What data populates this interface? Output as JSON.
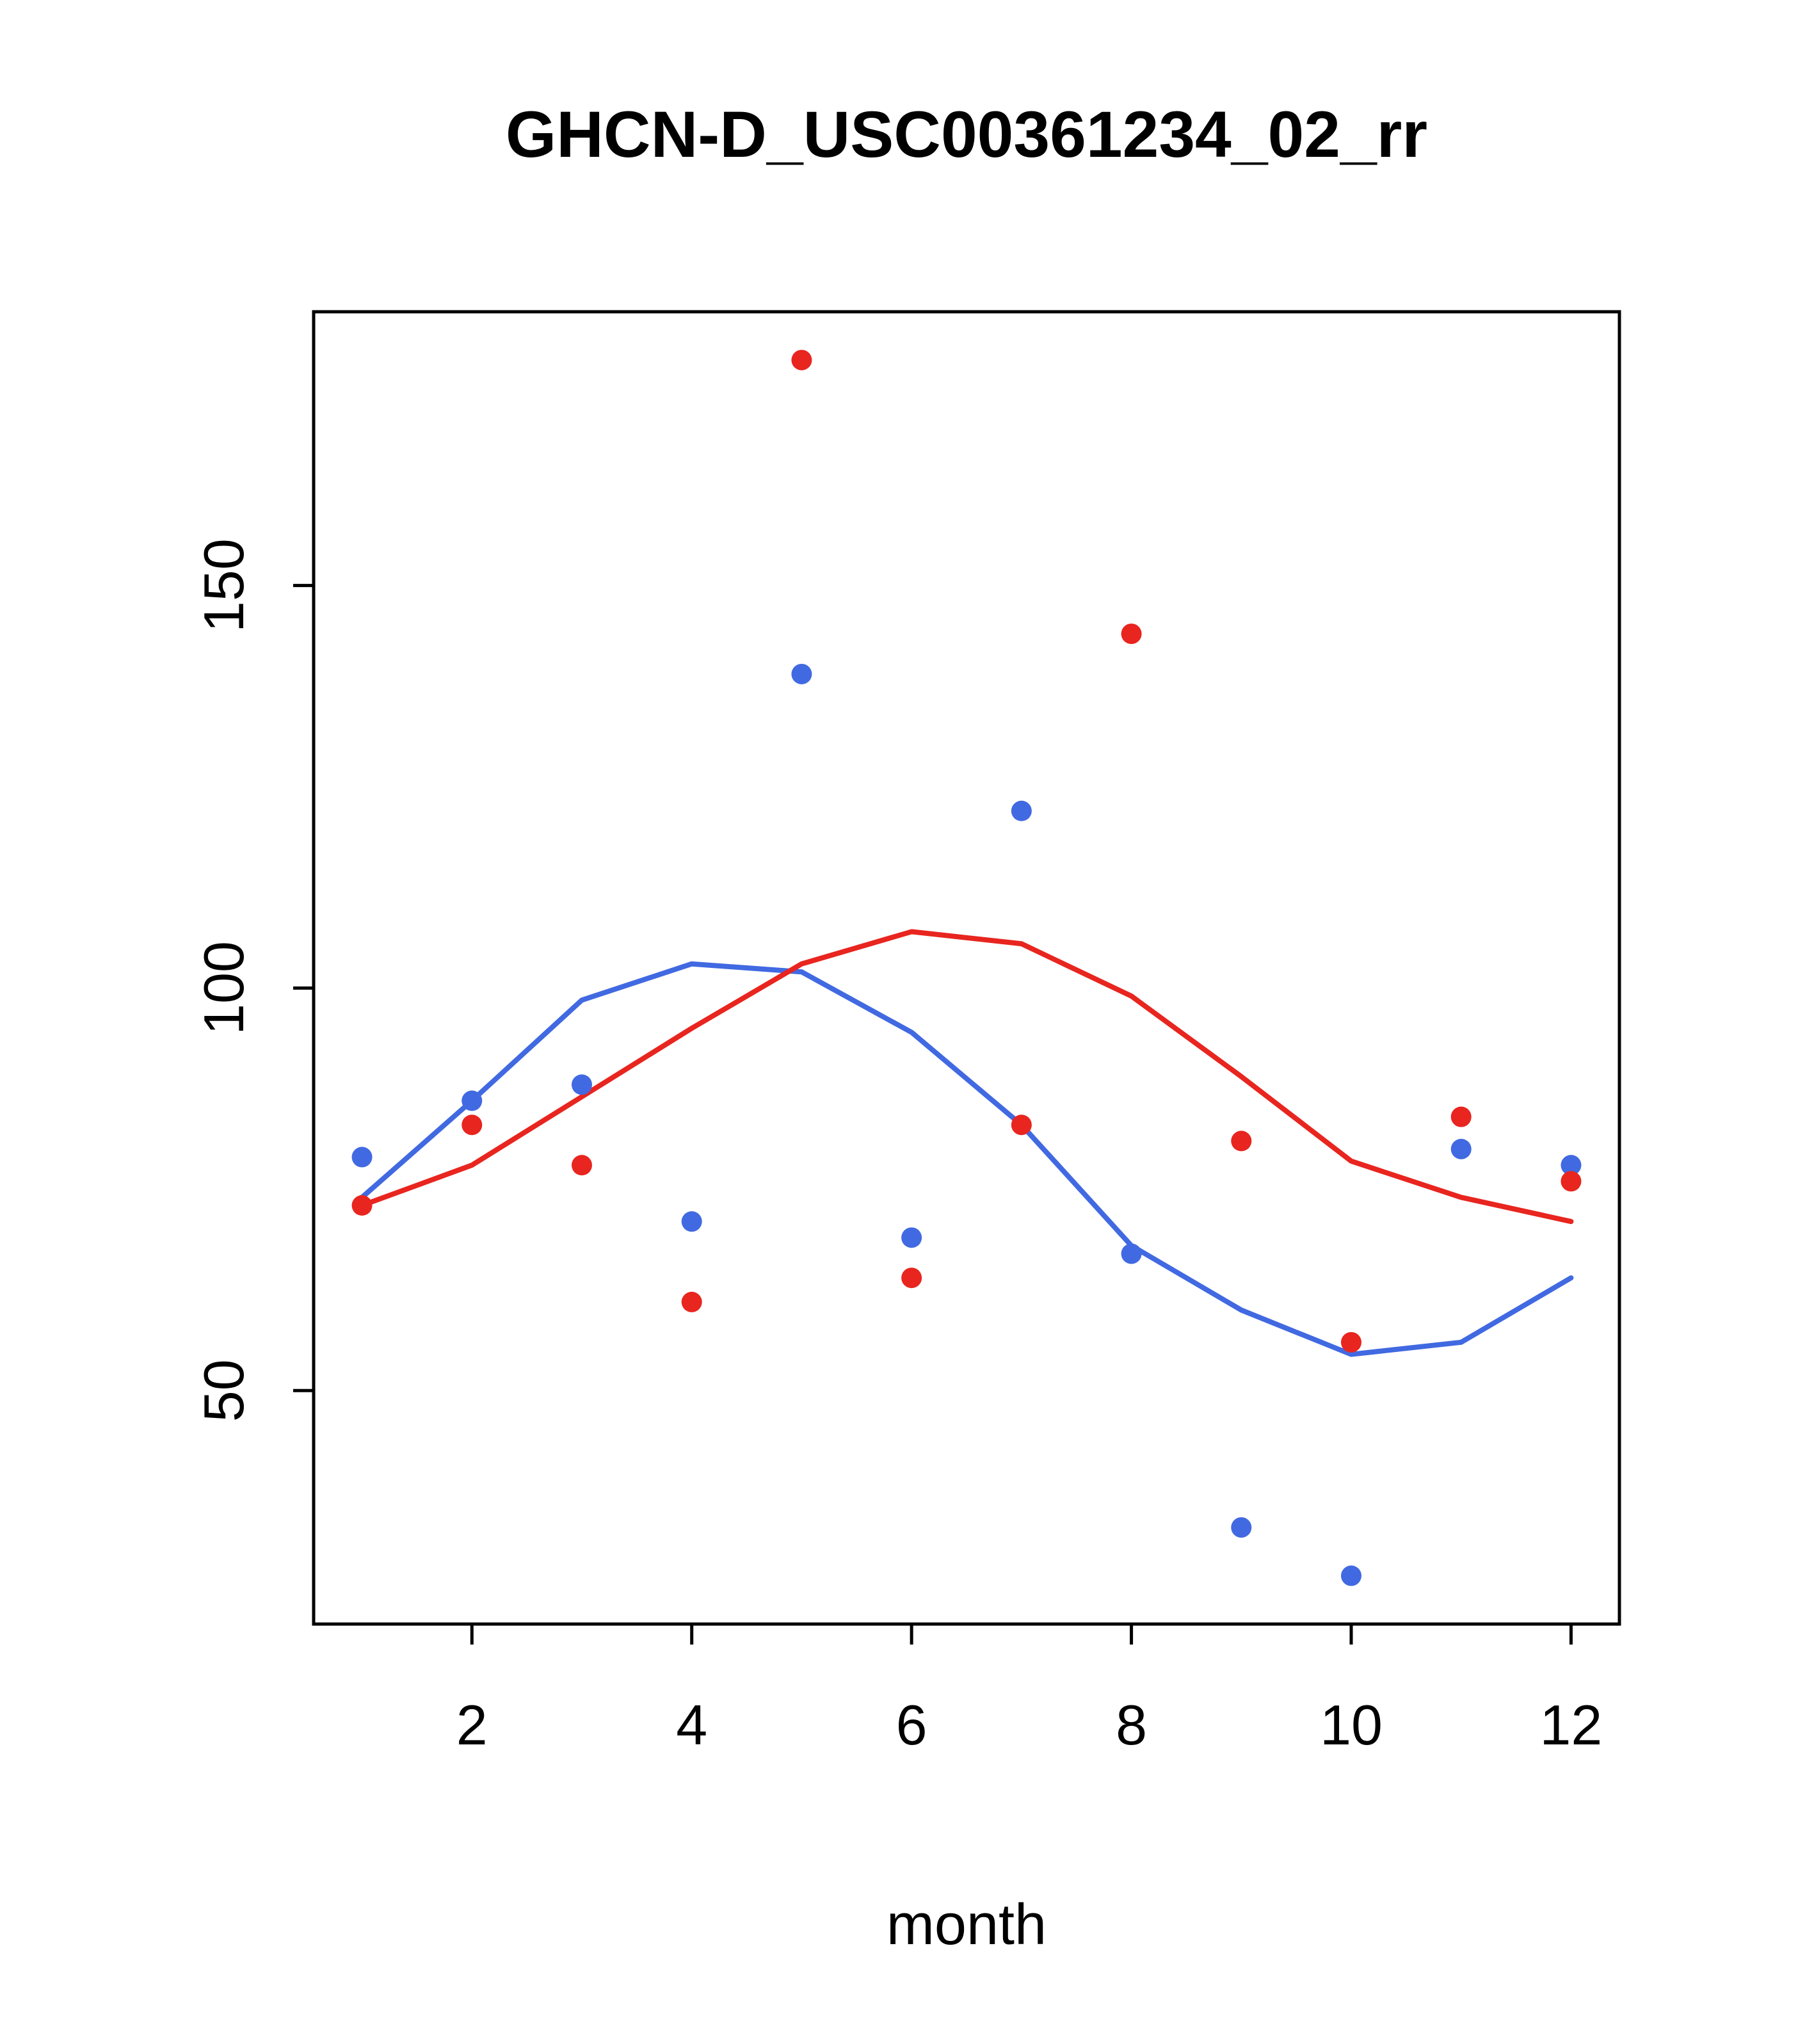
{
  "chart_data": {
    "type": "scatter",
    "title": "GHCN-D_USC00361234_02_rr",
    "xlabel": "month",
    "ylabel": "",
    "x_ticks": [
      2,
      4,
      6,
      8,
      10,
      12
    ],
    "y_ticks": [
      50,
      100,
      150
    ],
    "xlim": [
      0.56,
      12.44
    ],
    "ylim": [
      21,
      184
    ],
    "grid": false,
    "legend": "none",
    "categories": [
      1,
      2,
      3,
      4,
      5,
      6,
      7,
      8,
      9,
      10,
      11,
      12
    ],
    "series": [
      {
        "name": "blue-smooth-line",
        "kind": "line",
        "color": "#4169e1",
        "values": [
          74,
          86,
          98.5,
          103,
          102,
          94.5,
          83,
          68,
          60,
          54.5,
          56,
          64
        ]
      },
      {
        "name": "red-smooth-line",
        "kind": "line",
        "color": "#e8251f",
        "values": [
          73,
          78,
          86.5,
          95,
          103,
          107,
          105.5,
          99,
          89,
          78.5,
          74,
          71
        ]
      },
      {
        "name": "blue-points",
        "kind": "scatter",
        "color": "#4169e1",
        "values": [
          79,
          86,
          88,
          71,
          139,
          69,
          122,
          67,
          33,
          27,
          80,
          78
        ]
      },
      {
        "name": "red-points",
        "kind": "scatter",
        "color": "#e8251f",
        "values": [
          73,
          83,
          78,
          61,
          178,
          64,
          83,
          144,
          81,
          56,
          84,
          76
        ]
      }
    ]
  },
  "colors": {
    "blue": "#4169e1",
    "red": "#e8251f",
    "axis": "#000000",
    "background": "#ffffff"
  }
}
